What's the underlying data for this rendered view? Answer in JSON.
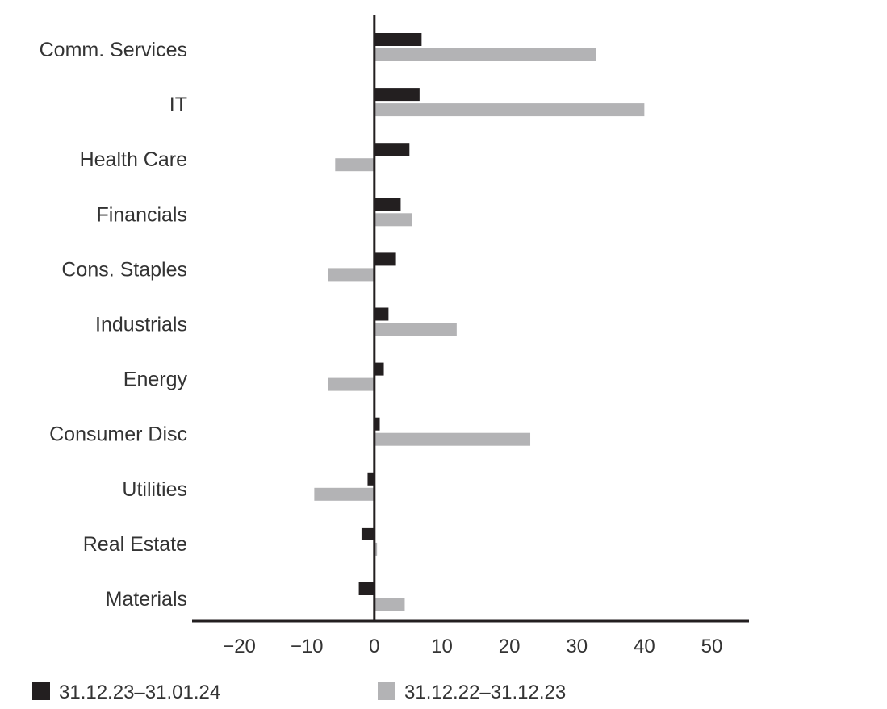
{
  "chart_data": {
    "type": "bar",
    "orientation": "horizontal",
    "categories": [
      "Comm. Services",
      "IT",
      "Health Care",
      "Financials",
      "Cons. Staples",
      "Industrials",
      "Energy",
      "Consumer Disc",
      "Utilities",
      "Real Estate",
      "Materials"
    ],
    "series": [
      {
        "name": "31.12.23–31.01.24",
        "color": "#231f20",
        "values": [
          7.0,
          6.7,
          5.2,
          3.9,
          3.2,
          2.1,
          1.4,
          0.8,
          -1.0,
          -1.9,
          -2.3
        ]
      },
      {
        "name": "31.12.22–31.12.23",
        "color": "#b3b3b5",
        "values": [
          32.8,
          40.0,
          -5.8,
          5.6,
          -6.8,
          12.2,
          -6.8,
          23.1,
          -8.9,
          0.4,
          4.5
        ]
      }
    ],
    "x_ticks": [
      "−20",
      "−10",
      "0",
      "10",
      "20",
      "30",
      "40",
      "50"
    ],
    "x_tick_values": [
      -20,
      -10,
      0,
      10,
      20,
      30,
      40,
      50
    ],
    "xlim": [
      -27,
      55.5
    ],
    "title": "",
    "xlabel": "",
    "ylabel": "",
    "grid": false,
    "legend_position": "bottom"
  }
}
